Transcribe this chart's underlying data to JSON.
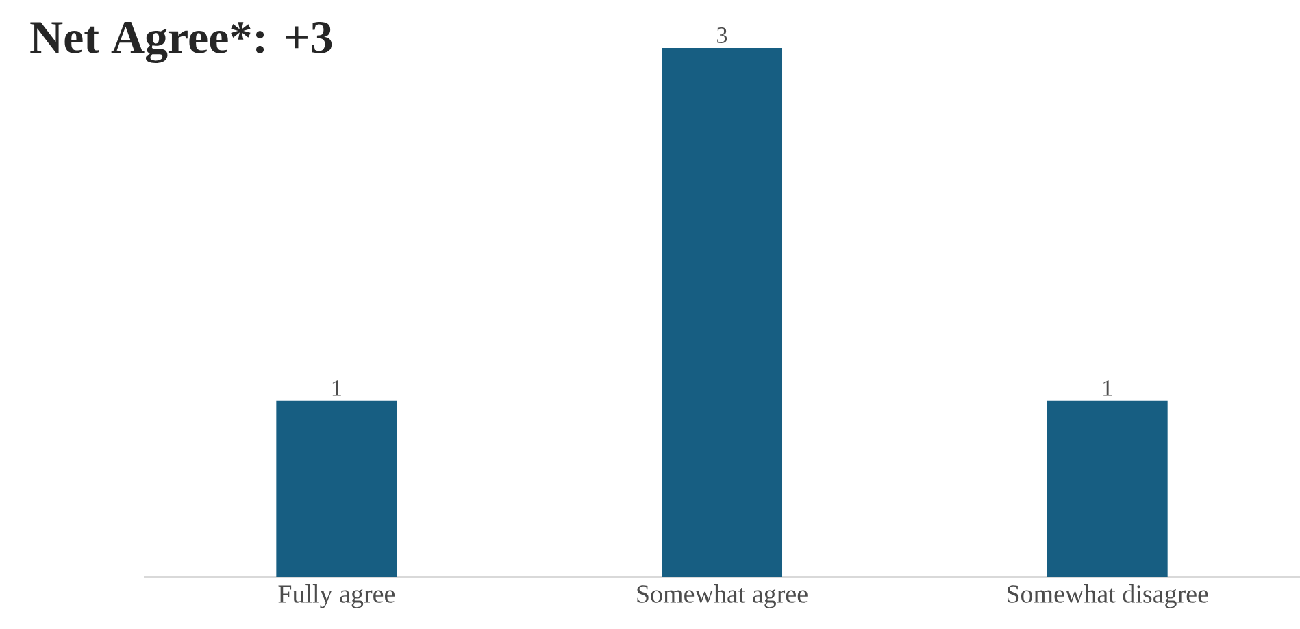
{
  "chart_data": {
    "type": "bar",
    "title": "Net Agree*: +3",
    "categories": [
      "Fully agree",
      "Somewhat agree",
      "Somewhat disagree"
    ],
    "values": [
      1,
      3,
      1
    ],
    "color": "#175e82",
    "data_labels": true
  }
}
